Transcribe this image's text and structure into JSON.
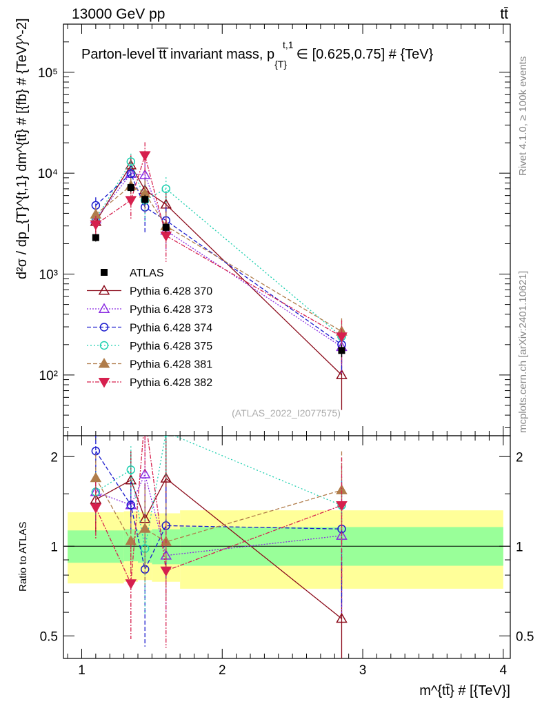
{
  "header": {
    "energy_label": "13000 GeV pp",
    "process_label": "tt̄"
  },
  "side": {
    "rivet_label": "Rivet 4.1.0, ≥ 100k events",
    "mcplots_label": "mcplots.cern.ch [arXiv:2401.10621]"
  },
  "chart_data": {
    "type": "scatter",
    "title": "Parton-level tt̄ invariant mass, p_{T}^{t,1} ∈ [0.625,0.75] # {TeV}",
    "title_main": "Parton-level t̅t̅ invariant mass, p",
    "title_sub": "{T}",
    "title_sup": "t,1",
    "title_tail": "∈ [0.625,0.75] # {TeV}",
    "watermark": "(ATLAS_2022_I2077575)",
    "ylabel_main": "d²σ / dp_{T}^{t,1} dm^{tt̄} # [{fb} # {TeV}^-2]",
    "ylabel_ratio": "Ratio to ATLAS",
    "xlabel": "m^{tt̄} # [{TeV}]",
    "xlim": [
      0.87,
      4.05
    ],
    "ylim_main": [
      25,
      300000
    ],
    "ylim_ratio": [
      0.42,
      2.35
    ],
    "x_ticks": [
      "1",
      "2",
      "3",
      "4"
    ],
    "y_ticks_main": [
      "10²",
      "10³",
      "10⁴",
      "10⁵"
    ],
    "y_ticks_ratio": [
      "0.5",
      "1",
      "2"
    ],
    "x": [
      1.1,
      1.35,
      1.45,
      1.6,
      2.85
    ],
    "bins": [
      [
        0.9,
        1.3
      ],
      [
        1.3,
        1.4
      ],
      [
        1.4,
        1.5
      ],
      [
        1.5,
        1.7
      ],
      [
        1.7,
        4.0
      ]
    ],
    "band_inner": [
      [
        0.88,
        1.13
      ],
      [
        0.89,
        1.14
      ],
      [
        0.88,
        1.13
      ],
      [
        0.87,
        1.14
      ],
      [
        0.86,
        1.16
      ]
    ],
    "band_outer": [
      [
        0.75,
        1.3
      ],
      [
        0.76,
        1.31
      ],
      [
        0.77,
        1.3
      ],
      [
        0.76,
        1.29
      ],
      [
        0.72,
        1.32
      ]
    ],
    "data": {
      "name": "ATLAS",
      "values": [
        2300,
        7200,
        5500,
        2900,
        175
      ],
      "err_low": [
        200,
        700,
        600,
        300,
        25
      ],
      "err_high": [
        200,
        700,
        600,
        300,
        25
      ]
    },
    "series": [
      {
        "name": "Pythia 6.428 370",
        "color": "#8b0a1a",
        "marker": "tri-up-open",
        "dash": "",
        "values": [
          3300,
          12000,
          6800,
          4900,
          100
        ],
        "err_rel": [
          0.22,
          0.25,
          0.32,
          0.35,
          0.55
        ]
      },
      {
        "name": "Pythia 6.428 373",
        "color": "#8a2be2",
        "marker": "tri-up-open",
        "dash": "2,2",
        "values": [
          3500,
          9900,
          9600,
          2700,
          190
        ],
        "err_rel": [
          0.2,
          0.2,
          0.4,
          0.35,
          0.45
        ]
      },
      {
        "name": "Pythia 6.428 374",
        "color": "#1a1acd",
        "marker": "circle-open",
        "dash": "6,3",
        "values": [
          4800,
          9900,
          4600,
          3400,
          200
        ],
        "err_rel": [
          0.2,
          0.2,
          0.45,
          0.35,
          0.45
        ]
      },
      {
        "name": "Pythia 6.428 375",
        "color": "#20d0b0",
        "marker": "circle-open",
        "dash": "2,3",
        "values": [
          3500,
          13000,
          5400,
          7000,
          240
        ],
        "err_rel": [
          0.2,
          0.2,
          0.4,
          0.3,
          0.35
        ]
      },
      {
        "name": "Pythia 6.428 381",
        "color": "#b07c4a",
        "marker": "tri-up-filled",
        "dash": "6,3",
        "values": [
          3900,
          7500,
          6300,
          3000,
          270
        ],
        "err_rel": [
          0.2,
          0.2,
          0.35,
          0.35,
          0.35
        ]
      },
      {
        "name": "Pythia 6.428 382",
        "color": "#d6204e",
        "marker": "tri-down-filled",
        "dash": "6,2,2,2",
        "values": [
          3100,
          5400,
          15000,
          2400,
          240
        ],
        "err_rel": [
          0.22,
          0.35,
          0.35,
          0.45,
          0.45
        ]
      }
    ]
  }
}
